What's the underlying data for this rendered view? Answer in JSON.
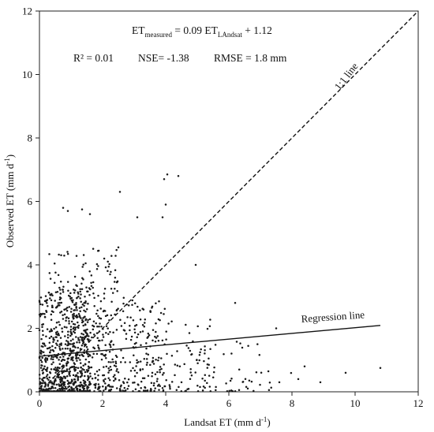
{
  "chart_data": {
    "type": "scatter",
    "xlabel": "Landsat ET (mm d",
    "xlabel_sup": "-1",
    "xlabel_end": ")",
    "ylabel": "Observed ET (mm d",
    "ylabel_sup": "-1",
    "ylabel_end": ")",
    "xlim": [
      0,
      12
    ],
    "ylim": [
      0,
      12
    ],
    "xticks": [
      0,
      2,
      4,
      6,
      8,
      10,
      12
    ],
    "yticks": [
      0,
      2,
      4,
      6,
      8,
      10,
      12
    ],
    "grid": false,
    "equation": {
      "lhs": "ET",
      "lhs_sub": "measured",
      "mid": " = 0.09 ET",
      "rhs_sub": "LAndsat",
      "tail": " + 1.12"
    },
    "stats": {
      "r2": "R² = 0.01",
      "nse": "NSE= -1.38",
      "rmse": "RMSE = 1.8 mm"
    },
    "one_to_one_line": {
      "label": "1:1 line",
      "x": [
        0,
        12
      ],
      "y": [
        0,
        12
      ],
      "style": "dashed"
    },
    "regression_line": {
      "label": "Regression line",
      "slope": 0.09,
      "intercept": 1.12,
      "x": [
        0,
        10.8
      ]
    },
    "notable_points": [
      {
        "x": 3.95,
        "y": 6.7
      },
      {
        "x": 4.05,
        "y": 6.85
      },
      {
        "x": 4.4,
        "y": 6.8
      },
      {
        "x": 2.55,
        "y": 6.3
      },
      {
        "x": 0.75,
        "y": 5.8
      },
      {
        "x": 0.9,
        "y": 5.7
      },
      {
        "x": 1.35,
        "y": 5.75
      },
      {
        "x": 1.6,
        "y": 5.6
      },
      {
        "x": 3.1,
        "y": 5.5
      },
      {
        "x": 3.9,
        "y": 5.5
      },
      {
        "x": 4.0,
        "y": 5.9
      },
      {
        "x": 4.95,
        "y": 4.0
      },
      {
        "x": 6.2,
        "y": 2.8
      },
      {
        "x": 7.5,
        "y": 2.0
      },
      {
        "x": 10.8,
        "y": 0.75
      },
      {
        "x": 9.7,
        "y": 0.6
      },
      {
        "x": 8.4,
        "y": 0.8
      },
      {
        "x": 8.9,
        "y": 0.3
      },
      {
        "x": 7.6,
        "y": 0.3
      },
      {
        "x": 8.2,
        "y": 0.4
      }
    ],
    "cloud": [
      {
        "xmin": 0.0,
        "xmax": 1.6,
        "ymax": 3.3,
        "count": 620
      },
      {
        "xmin": 0.3,
        "xmax": 2.5,
        "ymax": 4.6,
        "count": 260
      },
      {
        "xmin": 1.5,
        "xmax": 4.0,
        "ymax": 3.0,
        "count": 230
      },
      {
        "xmin": 3.0,
        "xmax": 5.6,
        "ymax": 2.3,
        "count": 110
      },
      {
        "xmin": 5.0,
        "xmax": 8.0,
        "ymax": 1.6,
        "count": 40
      }
    ],
    "marker_color": "#1a1a1a",
    "line_color": "#111111"
  }
}
